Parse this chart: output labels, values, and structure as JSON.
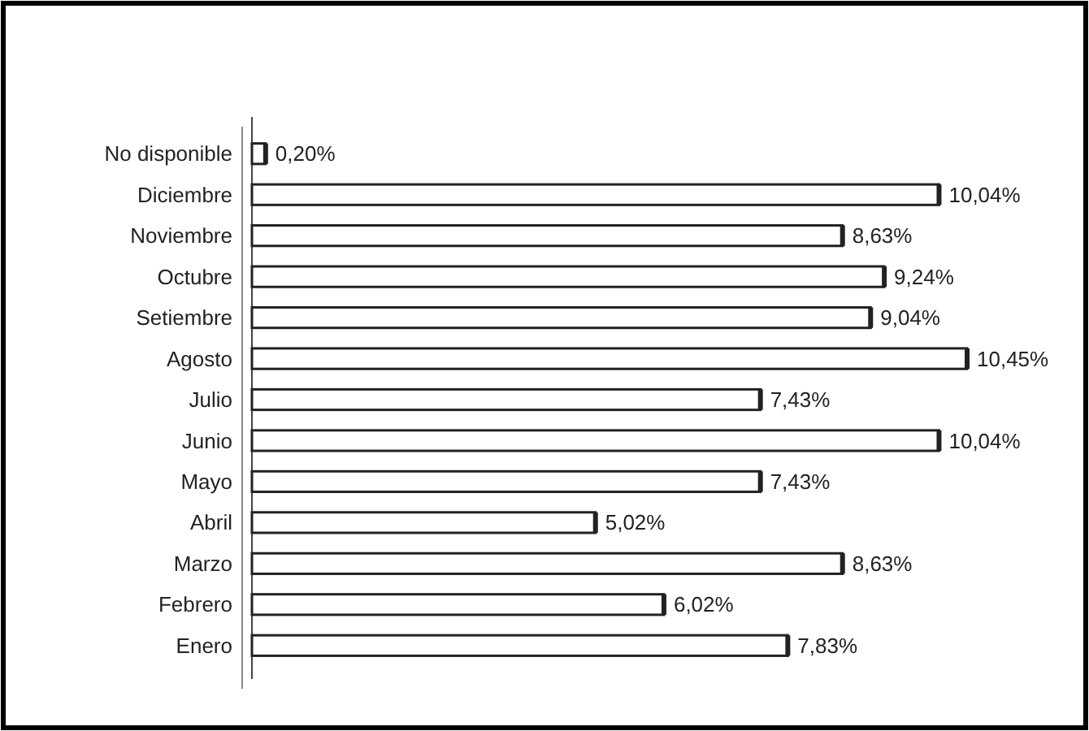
{
  "chart_data": {
    "type": "bar",
    "orientation": "horizontal",
    "categories": [
      "No disponible",
      "Diciembre",
      "Noviembre",
      "Octubre",
      "Setiembre",
      "Agosto",
      "Julio",
      "Junio",
      "Mayo",
      "Abril",
      "Marzo",
      "Febrero",
      "Enero"
    ],
    "values": [
      0.2,
      10.04,
      8.63,
      9.24,
      9.04,
      10.45,
      7.43,
      10.04,
      7.43,
      5.02,
      8.63,
      6.02,
      7.83
    ],
    "value_labels": [
      "0,20%",
      "10,04%",
      "8,63%",
      "9,24%",
      "9,04%",
      "10,45%",
      "7,43%",
      "10,04%",
      "7,43%",
      "5,02%",
      "8,63%",
      "6,02%",
      "7,83%"
    ],
    "color": "#ffffff"
  }
}
